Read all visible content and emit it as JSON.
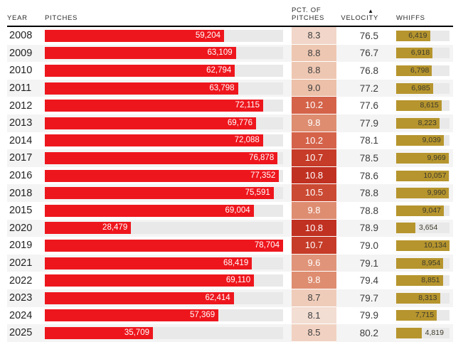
{
  "header": {
    "year": "YEAR",
    "pitches": "PITCHES",
    "pct_line1": "PCT. OF",
    "pct_line2": "PITCHES",
    "velocity": "VELOCITY",
    "whiffs": "WHIFFS",
    "sort_icon": "▲"
  },
  "style": {
    "pitches_bar_color": "#ee161d",
    "whiffs_bar_color": "#b6952e",
    "track_color": "#e9e9e9",
    "alt_row_color": "#f4f4f4"
  },
  "chart_data": {
    "type": "table",
    "columns": [
      "YEAR",
      "PITCHES",
      "PCT. OF PITCHES",
      "VELOCITY",
      "WHIFFS"
    ],
    "sort": {
      "column": "VELOCITY",
      "direction": "ascending"
    },
    "axes": {
      "pitches_bar_max": 78704,
      "whiffs_bar_max": 10134
    },
    "rows": [
      {
        "year": "2008",
        "pitches": "59,204",
        "pct": "8.3",
        "velocity": "76.5",
        "whiffs": "6,419",
        "pct_bg": "#f2d6c9",
        "pct_fg": "#3f3f3f",
        "whiffs_label_outside": false
      },
      {
        "year": "2009",
        "pitches": "63,109",
        "pct": "8.8",
        "velocity": "76.7",
        "whiffs": "6,918",
        "pct_bg": "#eec7b2",
        "pct_fg": "#3f3f3f",
        "whiffs_label_outside": false
      },
      {
        "year": "2010",
        "pitches": "62,794",
        "pct": "8.8",
        "velocity": "76.8",
        "whiffs": "6,798",
        "pct_bg": "#eec7b2",
        "pct_fg": "#3f3f3f",
        "whiffs_label_outside": false
      },
      {
        "year": "2011",
        "pitches": "63,798",
        "pct": "9.0",
        "velocity": "77.2",
        "whiffs": "6,985",
        "pct_bg": "#ecc0a9",
        "pct_fg": "#3f3f3f",
        "whiffs_label_outside": false
      },
      {
        "year": "2012",
        "pitches": "72,115",
        "pct": "10.2",
        "velocity": "77.6",
        "whiffs": "8,615",
        "pct_bg": "#d4634a",
        "pct_fg": "#ffffff",
        "whiffs_label_outside": false
      },
      {
        "year": "2013",
        "pitches": "69,776",
        "pct": "9.8",
        "velocity": "77.9",
        "whiffs": "8,223",
        "pct_bg": "#de8d71",
        "pct_fg": "#ffffff",
        "whiffs_label_outside": false
      },
      {
        "year": "2014",
        "pitches": "72,088",
        "pct": "10.2",
        "velocity": "78.1",
        "whiffs": "9,039",
        "pct_bg": "#d4634a",
        "pct_fg": "#ffffff",
        "whiffs_label_outside": false
      },
      {
        "year": "2017",
        "pitches": "76,878",
        "pct": "10.7",
        "velocity": "78.5",
        "whiffs": "9,969",
        "pct_bg": "#c63c28",
        "pct_fg": "#ffffff",
        "whiffs_label_outside": false
      },
      {
        "year": "2016",
        "pitches": "77,352",
        "pct": "10.8",
        "velocity": "78.6",
        "whiffs": "10,057",
        "pct_bg": "#c13122",
        "pct_fg": "#ffffff",
        "whiffs_label_outside": false
      },
      {
        "year": "2018",
        "pitches": "75,591",
        "pct": "10.5",
        "velocity": "78.8",
        "whiffs": "9,990",
        "pct_bg": "#cb4a33",
        "pct_fg": "#ffffff",
        "whiffs_label_outside": false
      },
      {
        "year": "2015",
        "pitches": "69,004",
        "pct": "9.8",
        "velocity": "78.8",
        "whiffs": "9,047",
        "pct_bg": "#de8d71",
        "pct_fg": "#ffffff",
        "whiffs_label_outside": false
      },
      {
        "year": "2020",
        "pitches": "28,479",
        "pct": "10.8",
        "velocity": "78.9",
        "whiffs": "3,654",
        "pct_bg": "#c13122",
        "pct_fg": "#ffffff",
        "whiffs_label_outside": true
      },
      {
        "year": "2019",
        "pitches": "78,704",
        "pct": "10.7",
        "velocity": "79.0",
        "whiffs": "10,134",
        "pct_bg": "#c63c28",
        "pct_fg": "#ffffff",
        "whiffs_label_outside": false
      },
      {
        "year": "2021",
        "pitches": "68,419",
        "pct": "9.6",
        "velocity": "79.1",
        "whiffs": "8,954",
        "pct_bg": "#e09479",
        "pct_fg": "#ffffff",
        "whiffs_label_outside": false
      },
      {
        "year": "2022",
        "pitches": "69,110",
        "pct": "9.8",
        "velocity": "79.4",
        "whiffs": "8,851",
        "pct_bg": "#de8d71",
        "pct_fg": "#ffffff",
        "whiffs_label_outside": false
      },
      {
        "year": "2023",
        "pitches": "62,414",
        "pct": "8.7",
        "velocity": "79.7",
        "whiffs": "8,313",
        "pct_bg": "#efccba",
        "pct_fg": "#3f3f3f",
        "whiffs_label_outside": false
      },
      {
        "year": "2024",
        "pitches": "57,369",
        "pct": "8.1",
        "velocity": "79.9",
        "whiffs": "7,715",
        "pct_bg": "#f3ded4",
        "pct_fg": "#3f3f3f",
        "whiffs_label_outside": false
      },
      {
        "year": "2025",
        "pitches": "35,709",
        "pct": "8.5",
        "velocity": "80.2",
        "whiffs": "4,819",
        "pct_bg": "#f1d2c2",
        "pct_fg": "#3f3f3f",
        "whiffs_label_outside": true
      }
    ]
  }
}
